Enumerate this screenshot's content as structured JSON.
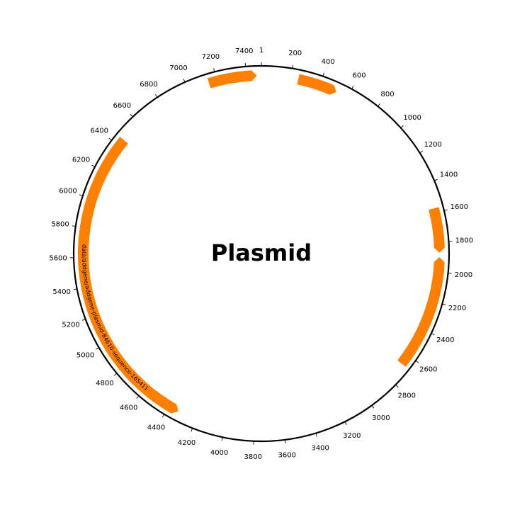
{
  "title": "Plasmid",
  "plasmid_length": 7500,
  "backbone_color": "#000000",
  "feature_color": "#ff8000",
  "ticks": [
    {
      "pos": 1,
      "label": "1"
    },
    {
      "pos": 200,
      "label": "200"
    },
    {
      "pos": 400,
      "label": "400"
    },
    {
      "pos": 600,
      "label": "600"
    },
    {
      "pos": 800,
      "label": "800"
    },
    {
      "pos": 1000,
      "label": "1000"
    },
    {
      "pos": 1200,
      "label": "1200"
    },
    {
      "pos": 1400,
      "label": "1400"
    },
    {
      "pos": 1600,
      "label": "1600"
    },
    {
      "pos": 1800,
      "label": "1800"
    },
    {
      "pos": 2000,
      "label": "2000"
    },
    {
      "pos": 2200,
      "label": "2200"
    },
    {
      "pos": 2400,
      "label": "2400"
    },
    {
      "pos": 2600,
      "label": "2600"
    },
    {
      "pos": 2800,
      "label": "2800"
    },
    {
      "pos": 3000,
      "label": "3000"
    },
    {
      "pos": 3200,
      "label": "3200"
    },
    {
      "pos": 3400,
      "label": "3400"
    },
    {
      "pos": 3600,
      "label": "3600"
    },
    {
      "pos": 3800,
      "label": "3800"
    },
    {
      "pos": 4000,
      "label": "4000"
    },
    {
      "pos": 4200,
      "label": "4200"
    },
    {
      "pos": 4400,
      "label": "4400"
    },
    {
      "pos": 4600,
      "label": "4600"
    },
    {
      "pos": 4800,
      "label": "4800"
    },
    {
      "pos": 5000,
      "label": "5000"
    },
    {
      "pos": 5200,
      "label": "5200"
    },
    {
      "pos": 5400,
      "label": "5400"
    },
    {
      "pos": 5600,
      "label": "5600"
    },
    {
      "pos": 5800,
      "label": "5800"
    },
    {
      "pos": 6000,
      "label": "6000"
    },
    {
      "pos": 6200,
      "label": "6200"
    },
    {
      "pos": 6400,
      "label": "6400"
    },
    {
      "pos": 6600,
      "label": "6600"
    },
    {
      "pos": 6800,
      "label": "6800"
    },
    {
      "pos": 7000,
      "label": "7000"
    },
    {
      "pos": 7200,
      "label": "7200"
    },
    {
      "pos": 7400,
      "label": "7400"
    }
  ],
  "features": [
    {
      "start": 7145,
      "end": 7470,
      "strand": 1,
      "label": ""
    },
    {
      "start": 250,
      "end": 520,
      "strand": 1,
      "label": ""
    },
    {
      "start": 1570,
      "end": 1870,
      "strand": 1,
      "label": ""
    },
    {
      "start": 1900,
      "end": 2670,
      "strand": -1,
      "label": ""
    },
    {
      "start": 4330,
      "end": 6450,
      "strand": -1,
      "label": "data/addgene/addgene-plasmid-84610-sequence-165411"
    }
  ]
}
